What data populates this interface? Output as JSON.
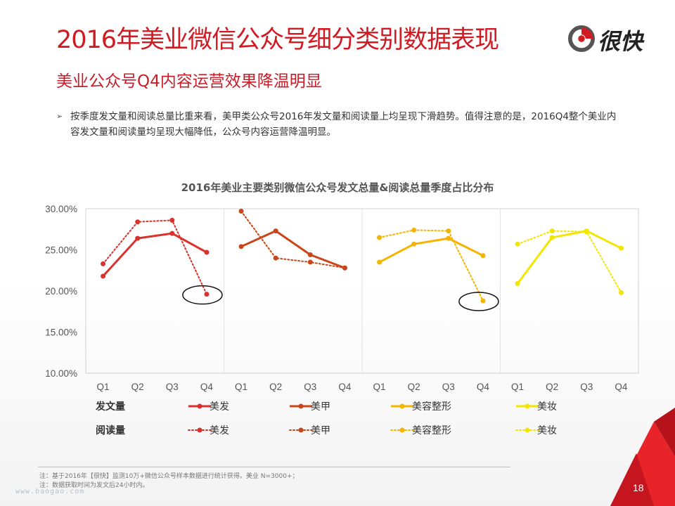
{
  "slide": {
    "title": "2016年美业微信公众号细分类别数据表现",
    "subtitle": "美业公众号Q4内容运营效果降温明显",
    "bullet": "按季度发文量和阅读总量比重来看，美甲类公众号2016年发文量和阅读量上均呈现下滑趋势。值得注意的是，2016Q4整个美业内容发文量和阅读量均呈现大幅降低，公众号内容运营降温明显。",
    "bullet_arrow": "➢",
    "logo_text": "很快",
    "notes": [
      "注：基于2016年【很快】监测10万+微信公众号样本数据进行统计获得。美业 N=3000+；",
      "注：数据获取时间为发文后24小时内。"
    ],
    "watermark": "www.baogao.com",
    "page_number": "18"
  },
  "colors": {
    "accent": "#d11a22",
    "美发": "#d9322d",
    "美甲": "#c8471a",
    "美容整形": "#f5b400",
    "美妆": "#f2e600"
  },
  "chart_data": {
    "type": "line",
    "title": "2016年美业主要类别微信公众号发文总量&阅读总量季度占比分布",
    "ylim": [
      0.1,
      0.3
    ],
    "yticks": [
      "30.00%",
      "25.00%",
      "20.00%",
      "15.00%",
      "10.00%"
    ],
    "ytick_values": [
      0.3,
      0.25,
      0.2,
      0.15,
      0.1
    ],
    "categories": [
      "Q1",
      "Q2",
      "Q3",
      "Q4"
    ],
    "grid": false,
    "legend_row_labels": [
      "发文量",
      "阅读量"
    ],
    "groups": [
      {
        "name": "美发",
        "color": "#d9322d",
        "post_volume": [
          0.218,
          0.264,
          0.27,
          0.247
        ],
        "read_volume": [
          0.233,
          0.284,
          0.286,
          0.196
        ],
        "highlight_q4_read": true
      },
      {
        "name": "美甲",
        "color": "#c8471a",
        "post_volume": [
          0.254,
          0.273,
          0.244,
          0.228
        ],
        "read_volume": [
          0.297,
          0.24,
          0.235,
          0.228
        ],
        "highlight_q4_read": false
      },
      {
        "name": "美容整形",
        "color": "#f5b400",
        "post_volume": [
          0.235,
          0.257,
          0.264,
          0.243
        ],
        "read_volume": [
          0.265,
          0.274,
          0.273,
          0.188
        ],
        "highlight_q4_read": true
      },
      {
        "name": "美妆",
        "color": "#f2e600",
        "post_volume": [
          0.209,
          0.265,
          0.273,
          0.252
        ],
        "read_volume": [
          0.257,
          0.273,
          0.272,
          0.198
        ],
        "highlight_q4_read": false
      }
    ]
  }
}
